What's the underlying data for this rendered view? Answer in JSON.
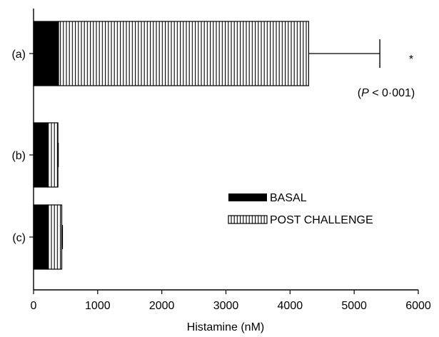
{
  "chart_data": {
    "type": "bar",
    "orientation": "horizontal",
    "stacked": true,
    "categories": [
      "(a)",
      "(b)",
      "(c)"
    ],
    "series": [
      {
        "name": "BASAL",
        "values": [
          390,
          220,
          230
        ],
        "fill": "solid"
      },
      {
        "name": "POST CHALLENGE",
        "values": [
          3900,
          160,
          210
        ],
        "fill": "vertical-stripes"
      }
    ],
    "error_bars": [
      5400,
      385,
      450
    ],
    "xlabel": "Histamine (nM)",
    "ylabel": "",
    "xlim": [
      0,
      6000
    ],
    "xticks": [
      "0",
      "1000",
      "2000",
      "3000",
      "4000",
      "5000",
      "6000"
    ],
    "xtick_values": [
      0,
      1000,
      2000,
      3000,
      4000,
      5000,
      6000
    ],
    "annotations": [
      {
        "category": "(a)",
        "text": "*"
      },
      {
        "category": "(a)",
        "text_parts": [
          "(",
          "P",
          " < 0·001)"
        ]
      }
    ],
    "legend_position": "center-right",
    "grid": false,
    "colors": {
      "bar": "#000000",
      "background": "#ffffff"
    }
  }
}
